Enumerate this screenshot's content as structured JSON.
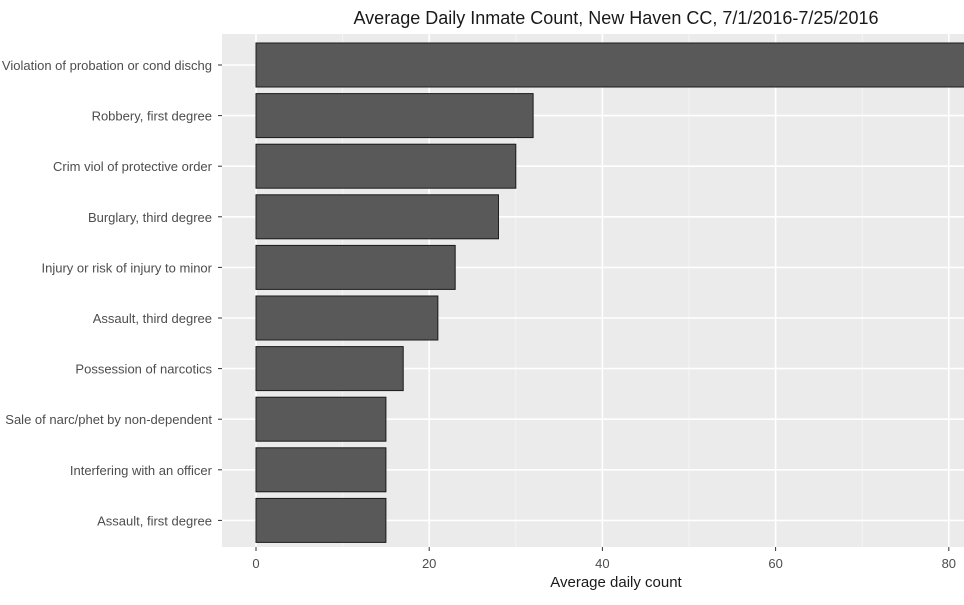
{
  "chart_data": {
    "type": "bar",
    "orientation": "horizontal",
    "title": "Average Daily Inmate Count, New Haven CC, 7/1/2016-7/25/2016",
    "xlabel": "Average daily count",
    "ylabel": "",
    "categories": [
      "Violation of probation or cond dischg",
      "Robbery, first degree",
      "Crim viol of protective order",
      "Burglary, third degree",
      "Injury or risk of injury to minor",
      "Assault, third degree",
      "Possession of narcotics",
      "Sale of narc/phet by non-dependent",
      "Interfering with an officer",
      "Assault, first degree"
    ],
    "values": [
      82,
      32,
      30,
      28,
      23,
      21,
      17,
      15,
      15,
      15
    ],
    "xlim": [
      0,
      82
    ],
    "xticks": [
      0,
      20,
      40,
      60,
      80
    ],
    "grid": true,
    "colors": {
      "bar_fill": "#595959",
      "bar_stroke": "#1a1a1a",
      "panel_bg": "#ebebeb",
      "grid_major": "#ffffff",
      "grid_minor": "#f4f4f4",
      "text": "#4d4d4d",
      "title": "#1a1a1a"
    }
  }
}
